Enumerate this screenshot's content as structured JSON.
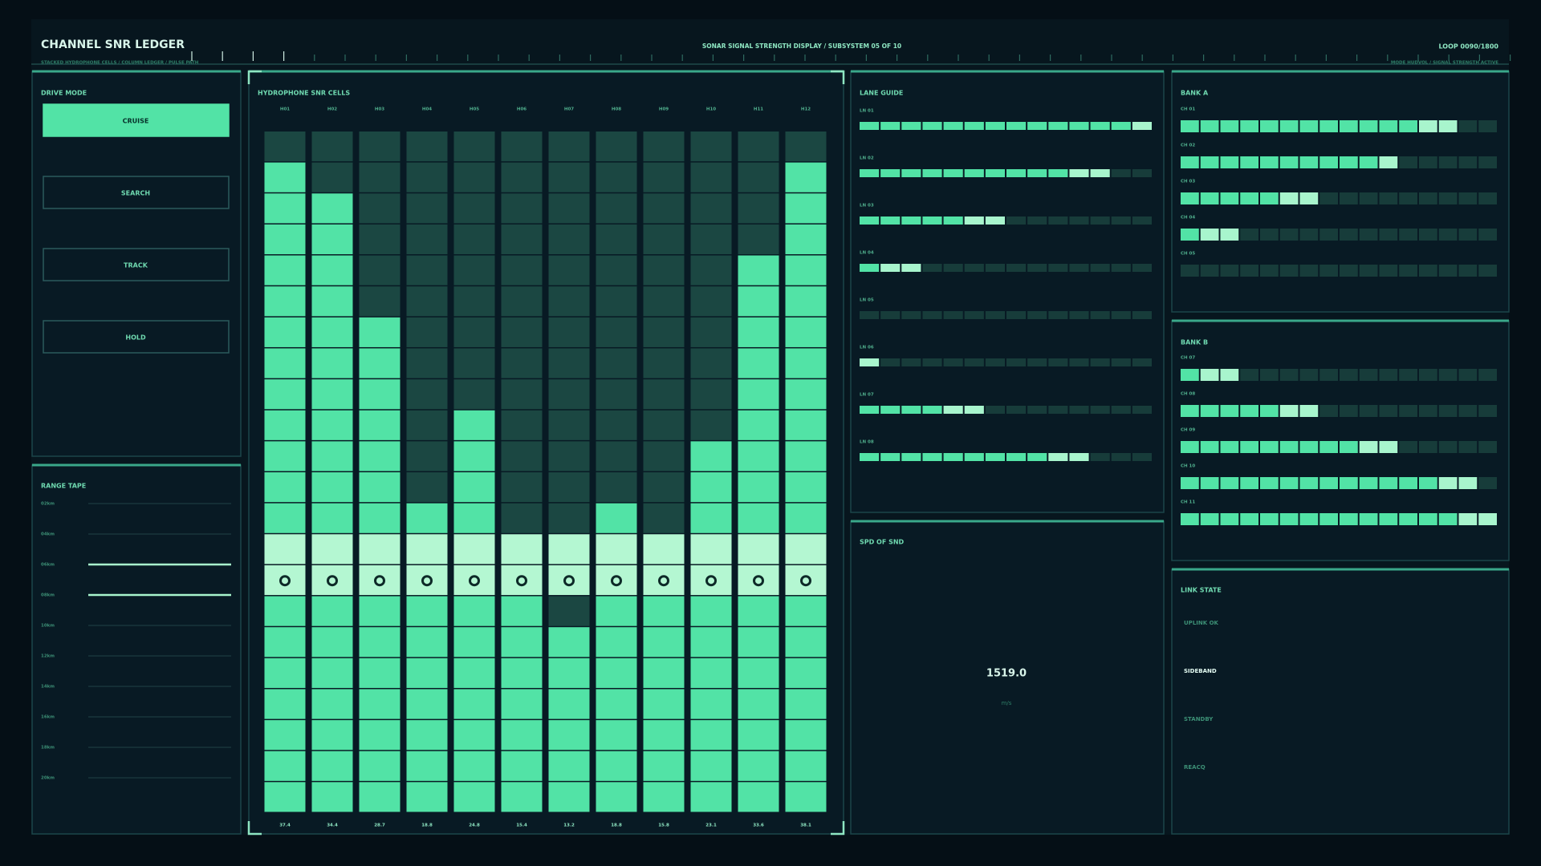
{
  "header": {
    "title": "CHANNEL SNR LEDGER",
    "subtitle": "STACKED HYDROPHONE CELLS / COLUMN LEDGER / PULSE PATH",
    "center": "SONAR SIGNAL STRENGTH DISPLAY / SUBSYSTEM 05 OF 10",
    "loop": "LOOP 0090/1800",
    "status": "MODE HUDVOL / SIGNAL STRENGTH ACTIVE"
  },
  "drive_mode": {
    "title": "DRIVE MODE",
    "buttons": [
      "CRUISE",
      "SEARCH",
      "TRACK",
      "HOLD"
    ],
    "active": 0
  },
  "range_tape": {
    "title": "RANGE TAPE",
    "marks": [
      "02km",
      "04km",
      "06km",
      "08km",
      "10km",
      "12km",
      "14km",
      "16km",
      "18km",
      "20km"
    ],
    "highlighted": [
      2,
      3
    ]
  },
  "hydrophone": {
    "title": "HYDROPHONE SNR CELLS",
    "rows": 22,
    "bright_rows": [
      13,
      14
    ],
    "marker_row": 14,
    "columns": [
      {
        "label": "H01",
        "value": "37.4",
        "unlit_above": 1
      },
      {
        "label": "H02",
        "value": "34.4",
        "unlit_above": 2
      },
      {
        "label": "H03",
        "value": "28.7",
        "unlit_above": 6
      },
      {
        "label": "H04",
        "value": "18.8",
        "unlit_above": 12
      },
      {
        "label": "H05",
        "value": "24.8",
        "unlit_above": 9
      },
      {
        "label": "H06",
        "value": "15.4",
        "unlit_above": 13
      },
      {
        "label": "H07",
        "value": "13.2",
        "unlit_above": 13,
        "unlit_extra": [
          15
        ]
      },
      {
        "label": "H08",
        "value": "18.8",
        "unlit_above": 12
      },
      {
        "label": "H09",
        "value": "15.8",
        "unlit_above": 13
      },
      {
        "label": "H10",
        "value": "23.1",
        "unlit_above": 10
      },
      {
        "label": "H11",
        "value": "33.6",
        "unlit_above": 4
      },
      {
        "label": "H12",
        "value": "38.1",
        "unlit_above": 1
      }
    ]
  },
  "lane_guide": {
    "title": "LANE GUIDE",
    "segments": 14,
    "lanes": [
      {
        "label": "LN 01",
        "lit": 14,
        "peak": 1
      },
      {
        "label": "LN 02",
        "lit": 12,
        "peak": 2
      },
      {
        "label": "LN 03",
        "lit": 7,
        "peak": 2
      },
      {
        "label": "LN 04",
        "lit": 3,
        "peak": 2
      },
      {
        "label": "LN 05",
        "lit": 0,
        "peak": 0
      },
      {
        "label": "LN 06",
        "lit": 1,
        "peak": 1
      },
      {
        "label": "LN 07",
        "lit": 6,
        "peak": 2
      },
      {
        "label": "LN 08",
        "lit": 11,
        "peak": 2
      }
    ]
  },
  "speed_of_sound": {
    "title": "SPD OF SND",
    "value": "1519.0",
    "unit": "m/s"
  },
  "bank_a": {
    "title": "BANK A",
    "segments": 16,
    "channels": [
      {
        "label": "CH 01",
        "lit": 14,
        "peak": 2
      },
      {
        "label": "CH 02",
        "lit": 11,
        "peak": 1
      },
      {
        "label": "CH 03",
        "lit": 7,
        "peak": 2
      },
      {
        "label": "CH 04",
        "lit": 3,
        "peak": 2
      },
      {
        "label": "CH 05",
        "lit": 0,
        "peak": 0
      }
    ]
  },
  "bank_b": {
    "title": "BANK B",
    "segments": 16,
    "channels": [
      {
        "label": "CH 07",
        "lit": 3,
        "peak": 2
      },
      {
        "label": "CH 08",
        "lit": 7,
        "peak": 2
      },
      {
        "label": "CH 09",
        "lit": 11,
        "peak": 2
      },
      {
        "label": "CH 10",
        "lit": 15,
        "peak": 2
      },
      {
        "label": "CH 11",
        "lit": 16,
        "peak": 2
      }
    ]
  },
  "link_state": {
    "title": "LINK STATE",
    "items": [
      "UPLINK OK",
      "SIDEBAND",
      "STANDBY",
      "REACQ"
    ],
    "active": 1
  }
}
